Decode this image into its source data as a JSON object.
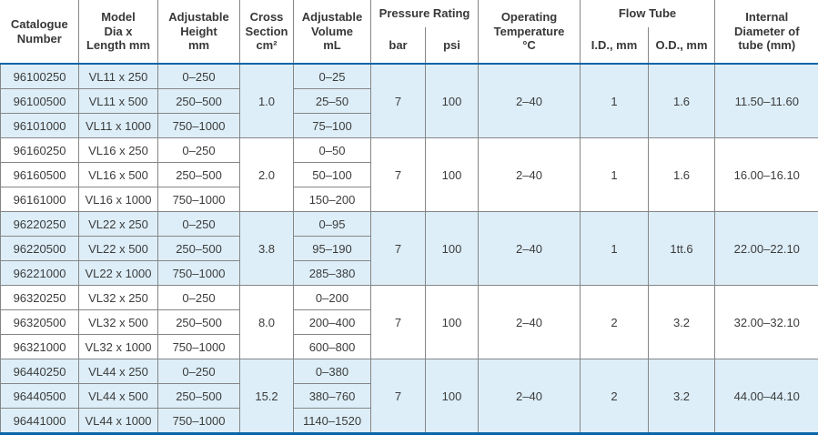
{
  "table": {
    "title": "flow-tube-specification-table",
    "colors": {
      "accent_blue": "#0a64a8",
      "grid_gray": "#868686",
      "group_highlight": "#ddeef8"
    },
    "header": {
      "catalogue": "Catalogue\nNumber",
      "model": "Model\nDia x\nLength mm",
      "adj_height": "Adjustable\nHeight\nmm",
      "cross_section": "Cross\nSection\ncm²",
      "adj_volume": "Adjustable\nVolume\nmL",
      "pressure_rating": "Pressure Rating",
      "bar": "bar",
      "psi": "psi",
      "operating_temp": "Operating\nTemperature\n°C",
      "flow_tube": "Flow Tube",
      "id_mm": "I.D., mm",
      "od_mm": "O.D., mm",
      "internal_dia": "Internal\nDiameter of\ntube (mm)"
    },
    "groups": [
      {
        "shade": "blue",
        "rows": [
          {
            "catalogue": "96100250",
            "model": "VL11 x 250",
            "height": "0–250",
            "volume": "0–25"
          },
          {
            "catalogue": "96100500",
            "model": "VL11 x 500",
            "height": "250–500",
            "volume": "25–50"
          },
          {
            "catalogue": "96101000",
            "model": "VL11 x 1000",
            "height": "750–1000",
            "volume": "75–100"
          }
        ],
        "cross_section": "1.0",
        "pressure_bar": "7",
        "pressure_psi": "100",
        "operating_temp": "2–40",
        "flow_id": "1",
        "flow_od": "1.6",
        "internal_dia": "11.50–11.60"
      },
      {
        "shade": "white",
        "rows": [
          {
            "catalogue": "96160250",
            "model": "VL16 x 250",
            "height": "0–250",
            "volume": "0–50"
          },
          {
            "catalogue": "96160500",
            "model": "VL16 x 500",
            "height": "250–500",
            "volume": "50–100"
          },
          {
            "catalogue": "96161000",
            "model": "VL16 x 1000",
            "height": "750–1000",
            "volume": "150–200"
          }
        ],
        "cross_section": "2.0",
        "pressure_bar": "7",
        "pressure_psi": "100",
        "operating_temp": "2–40",
        "flow_id": "1",
        "flow_od": "1.6",
        "internal_dia": "16.00–16.10"
      },
      {
        "shade": "blue",
        "rows": [
          {
            "catalogue": "96220250",
            "model": "VL22 x 250",
            "height": "0–250",
            "volume": "0–95"
          },
          {
            "catalogue": "96220500",
            "model": "VL22 x 500",
            "height": "250–500",
            "volume": "95–190"
          },
          {
            "catalogue": "96221000",
            "model": "VL22 x 1000",
            "height": "750–1000",
            "volume": "285–380"
          }
        ],
        "cross_section": "3.8",
        "pressure_bar": "7",
        "pressure_psi": "100",
        "operating_temp": "2–40",
        "flow_id": "1",
        "flow_od": "1tt.6",
        "internal_dia": "22.00–22.10"
      },
      {
        "shade": "white",
        "rows": [
          {
            "catalogue": "96320250",
            "model": "VL32 x 250",
            "height": "0–250",
            "volume": "0–200"
          },
          {
            "catalogue": "96320500",
            "model": "VL32 x 500",
            "height": "250–500",
            "volume": "200–400"
          },
          {
            "catalogue": "96321000",
            "model": "VL32 x 1000",
            "height": "750–1000",
            "volume": "600–800"
          }
        ],
        "cross_section": "8.0",
        "pressure_bar": "7",
        "pressure_psi": "100",
        "operating_temp": "2–40",
        "flow_id": "2",
        "flow_od": "3.2",
        "internal_dia": "32.00–32.10"
      },
      {
        "shade": "blue",
        "rows": [
          {
            "catalogue": "96440250",
            "model": "VL44 x 250",
            "height": "0–250",
            "volume": "0–380"
          },
          {
            "catalogue": "96440500",
            "model": "VL44 x 500",
            "height": "250–500",
            "volume": "380–760"
          },
          {
            "catalogue": "96441000",
            "model": "VL44 x 1000",
            "height": "750–1000",
            "volume": "1140–1520"
          }
        ],
        "cross_section": "15.2",
        "pressure_bar": "7",
        "pressure_psi": "100",
        "operating_temp": "2–40",
        "flow_id": "2",
        "flow_od": "3.2",
        "internal_dia": "44.00–44.10"
      }
    ]
  }
}
